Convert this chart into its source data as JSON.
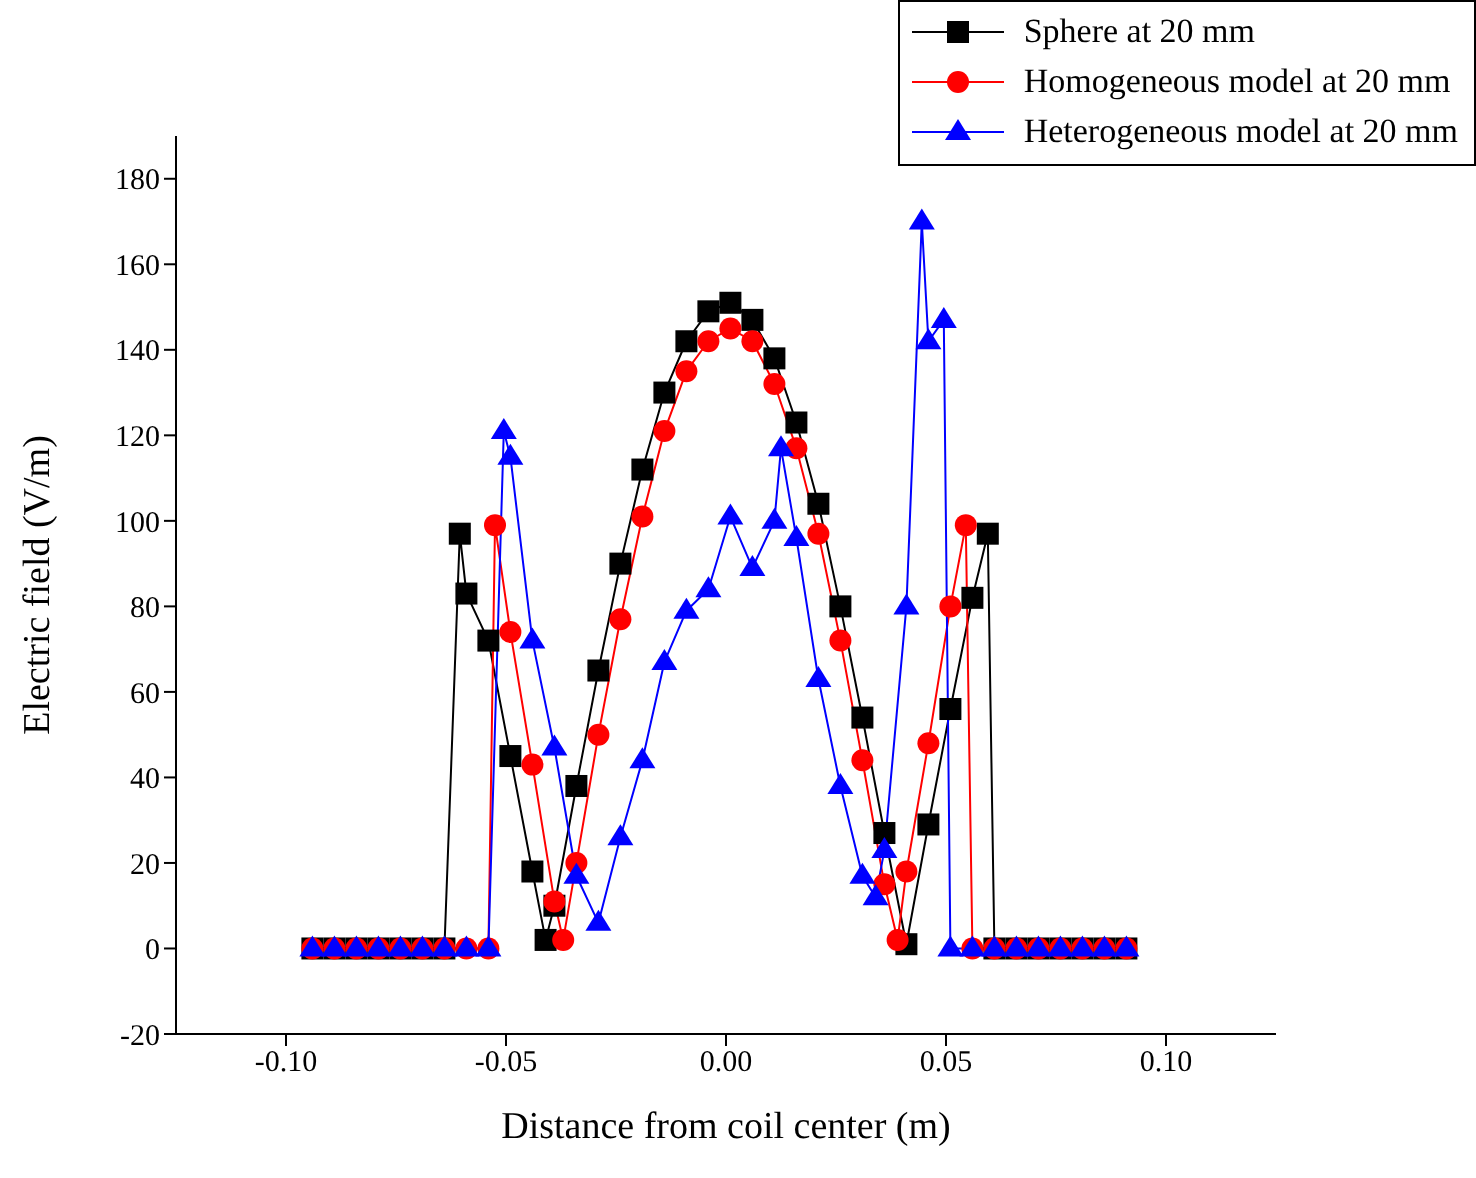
{
  "chart_data": {
    "type": "line",
    "xlabel": "Distance from coil center (m)",
    "ylabel": "Electric field (V/m)",
    "xlim": [
      -0.125,
      0.125
    ],
    "ylim": [
      -20,
      190
    ],
    "xticks": [
      {
        "value": -0.1,
        "label": "-0.10"
      },
      {
        "value": -0.05,
        "label": "-0.05"
      },
      {
        "value": 0,
        "label": "0.00"
      },
      {
        "value": 0.05,
        "label": "0.05"
      },
      {
        "value": 0.1,
        "label": "0.10"
      }
    ],
    "yticks": [
      -20,
      0,
      20,
      40,
      60,
      80,
      100,
      120,
      140,
      160,
      180
    ],
    "grid": false,
    "legend": "top right",
    "line_style": "solid",
    "series": [
      {
        "name": "Sphere at 20 mm",
        "color": "#000000",
        "marker": "square",
        "x": [
          -0.094,
          -0.089,
          -0.084,
          -0.079,
          -0.074,
          -0.069,
          -0.064,
          -0.0605,
          -0.059,
          -0.054,
          -0.049,
          -0.044,
          -0.041,
          -0.039,
          -0.034,
          -0.029,
          -0.024,
          -0.019,
          -0.014,
          -0.009,
          -0.004,
          0.001,
          0.006,
          0.011,
          0.016,
          0.021,
          0.026,
          0.031,
          0.036,
          0.041,
          0.046,
          0.051,
          0.056,
          0.0595,
          0.061,
          0.066,
          0.071,
          0.076,
          0.081,
          0.086,
          0.091
        ],
        "values": [
          0,
          0,
          0,
          0,
          0,
          0,
          0,
          97,
          83,
          72,
          45,
          18,
          2,
          10,
          38,
          65,
          90,
          112,
          130,
          142,
          149,
          151,
          147,
          138,
          123,
          104,
          80,
          54,
          27,
          1,
          29,
          56,
          82,
          97,
          0,
          0,
          0,
          0,
          0,
          0,
          0
        ]
      },
      {
        "name": "Homogeneous model at 20 mm",
        "color": "#ff0000",
        "marker": "circle",
        "x": [
          -0.094,
          -0.089,
          -0.084,
          -0.079,
          -0.074,
          -0.069,
          -0.064,
          -0.059,
          -0.054,
          -0.0525,
          -0.049,
          -0.044,
          -0.039,
          -0.037,
          -0.034,
          -0.029,
          -0.024,
          -0.019,
          -0.014,
          -0.009,
          -0.004,
          0.001,
          0.006,
          0.011,
          0.016,
          0.021,
          0.026,
          0.031,
          0.036,
          0.039,
          0.041,
          0.046,
          0.051,
          0.0545,
          0.056,
          0.061,
          0.066,
          0.071,
          0.076,
          0.081,
          0.086,
          0.091
        ],
        "values": [
          0,
          0,
          0,
          0,
          0,
          0,
          0,
          0,
          0,
          99,
          74,
          43,
          11,
          2,
          20,
          50,
          77,
          101,
          121,
          135,
          142,
          145,
          142,
          132,
          117,
          97,
          72,
          44,
          15,
          2,
          18,
          48,
          80,
          99,
          0,
          0,
          0,
          0,
          0,
          0,
          0,
          0
        ]
      },
      {
        "name": "Heterogeneous model at 20 mm",
        "color": "#0000ff",
        "marker": "triangle",
        "x": [
          -0.094,
          -0.089,
          -0.084,
          -0.079,
          -0.074,
          -0.069,
          -0.064,
          -0.059,
          -0.054,
          -0.0505,
          -0.049,
          -0.044,
          -0.039,
          -0.034,
          -0.029,
          -0.024,
          -0.019,
          -0.014,
          -0.009,
          -0.004,
          0.001,
          0.006,
          0.011,
          0.0125,
          0.016,
          0.021,
          0.026,
          0.031,
          0.034,
          0.036,
          0.041,
          0.0445,
          0.046,
          0.0495,
          0.051,
          0.056,
          0.061,
          0.066,
          0.071,
          0.076,
          0.081,
          0.086,
          0.091
        ],
        "values": [
          0,
          0,
          0,
          0,
          0,
          0,
          0,
          0,
          0,
          121,
          115,
          72,
          47,
          17,
          6,
          26,
          44,
          67,
          79,
          84,
          101,
          89,
          100,
          117,
          96,
          63,
          38,
          17,
          12,
          23,
          80,
          170,
          142,
          147,
          0,
          0,
          0,
          0,
          0,
          0,
          0,
          0,
          0
        ]
      }
    ]
  }
}
